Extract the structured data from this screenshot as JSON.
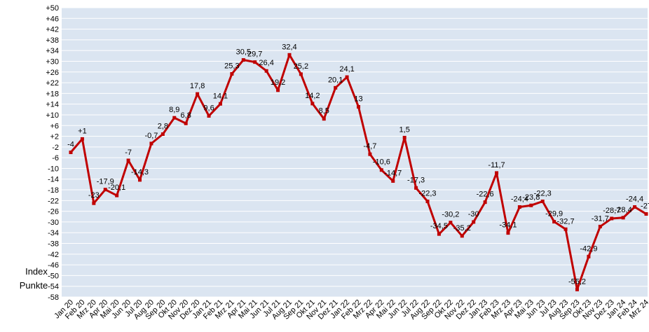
{
  "chart_data": {
    "type": "line",
    "y_label": [
      "Index",
      "Punkte"
    ],
    "categories": [
      "Jan 20",
      "Feb 20",
      "Mrz 20",
      "Apr 20",
      "Mai 20",
      "Jun 20",
      "Jul 20",
      "Aug 20",
      "Sep 20",
      "Okt 20",
      "Nov 20",
      "Dez 20",
      "Jan 21",
      "Feb 21",
      "Mrz 21",
      "Apr 21",
      "Mai 21",
      "Jun 21",
      "Jul 21",
      "Aug 21",
      "Sep 21",
      "Okt 21",
      "Nov 21",
      "Dez 21",
      "Jan 22",
      "Feb 22",
      "Mrz 22",
      "Apr 22",
      "Mai 22",
      "Jun 22",
      "Jul 22",
      "Aug 22",
      "Sep 22",
      "Okt 22",
      "Nov 22",
      "Dez 22",
      "Jan 23",
      "Feb 23",
      "Mrz 23",
      "Apr 23",
      "Mai 23",
      "Jun 23",
      "Jul 23",
      "Aug 23",
      "Sep 23",
      "Okt 23",
      "Nov 23",
      "Dez 23",
      "Jan 24",
      "Feb 24",
      "Mrz 24"
    ],
    "series": [
      {
        "name": "Index",
        "color": "#c00000",
        "values": [
          -4,
          1,
          -23,
          -17.9,
          -20.1,
          -7,
          -14.3,
          -0.7,
          2.8,
          8.9,
          6.8,
          17.8,
          9.6,
          14.1,
          25.3,
          30.5,
          29.7,
          26.4,
          19.2,
          32.4,
          25.2,
          14.2,
          8.5,
          20.1,
          24.1,
          13,
          -4.7,
          -10.6,
          -14.7,
          1.5,
          -17.3,
          -22.3,
          -34.5,
          -30.2,
          -35.2,
          -30,
          -22.6,
          -11.7,
          -34.1,
          -24.4,
          -23.8,
          -22.3,
          -29.9,
          -32.7,
          -55.2,
          -42.9,
          -31.7,
          -28.7,
          -28.4,
          -24.4,
          -27
        ],
        "value_labels": [
          "-4",
          "+1",
          "-23",
          "-17,9",
          "-20,1",
          "-7",
          "-14,3",
          "-0,7",
          "2,8",
          "8,9",
          "6,8",
          "17,8",
          "9,6",
          "14,1",
          "25,3",
          "30,5",
          "29,7",
          "26,4",
          "19,2",
          "32,4",
          "25,2",
          "14,2",
          "8,5",
          "20,1",
          "24,1",
          "13",
          "-4,7",
          "-10,6",
          "-14,7",
          "1,5",
          "-17,3",
          "-22,3",
          "-34,5",
          "-30,2",
          "-35,2",
          "-30",
          "-22,6",
          "-11,7",
          "-34,1",
          "-24,4",
          "-23,8",
          "-22,3",
          "-29,9",
          "-32,7",
          "-55,2",
          "-42,9",
          "-31,7",
          "-28,7",
          "-28,4",
          "-24,4",
          "-27"
        ]
      }
    ],
    "ylim": [
      -58,
      50
    ],
    "yticks": [
      {
        "value": 50,
        "label": "+50"
      },
      {
        "value": 46,
        "label": "+46"
      },
      {
        "value": 42,
        "label": "+42"
      },
      {
        "value": 38,
        "label": "+38"
      },
      {
        "value": 34,
        "label": "+34"
      },
      {
        "value": 30,
        "label": "+30"
      },
      {
        "value": 26,
        "label": "+26"
      },
      {
        "value": 22,
        "label": "+22"
      },
      {
        "value": 18,
        "label": "+18"
      },
      {
        "value": 14,
        "label": "+14"
      },
      {
        "value": 10,
        "label": "+10"
      },
      {
        "value": 6,
        "label": "+6"
      },
      {
        "value": 2,
        "label": "+2"
      },
      -2,
      -6,
      -10,
      -14,
      -18,
      -22,
      -26,
      -30,
      -34,
      -38,
      -42,
      -46,
      -50,
      -54,
      -58
    ],
    "grid": true
  }
}
